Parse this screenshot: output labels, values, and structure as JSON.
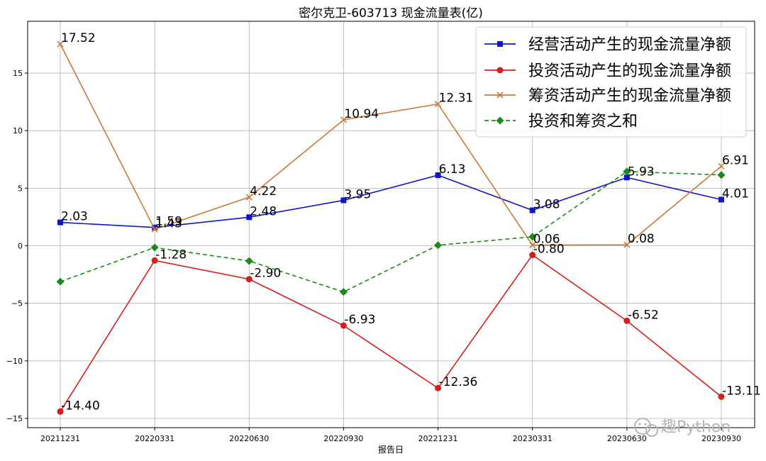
{
  "chart_data": {
    "type": "line",
    "title": "密尔克卫-603713 现金流量表(亿)",
    "xlabel": "报告日",
    "ylabel": "",
    "categories": [
      "20211231",
      "20220331",
      "20220630",
      "20220930",
      "20221231",
      "20230331",
      "20230630",
      "20230930"
    ],
    "ylim": [
      -15.8,
      19.5
    ],
    "yticks": [
      -15,
      -10,
      -5,
      0,
      5,
      10,
      15
    ],
    "ytick_labels": [
      "−15",
      "−10",
      "−5",
      "0",
      "5",
      "10",
      "15"
    ],
    "grid": true,
    "legend_position": "top-right",
    "series": [
      {
        "name": "经营活动产生的现金流量净额",
        "values": [
          2.03,
          1.59,
          2.48,
          3.95,
          6.13,
          3.08,
          5.93,
          4.01
        ],
        "labels": [
          "2.03",
          "1.59",
          "2.48",
          "3.95",
          "6.13",
          "3.08",
          "5.93",
          "4.01"
        ],
        "color": "#1515c8",
        "marker": "square",
        "dash": "solid"
      },
      {
        "name": "投资活动产生的现金流量净额",
        "values": [
          -14.4,
          -1.28,
          -2.9,
          -6.93,
          -12.36,
          -0.8,
          -6.52,
          -13.11
        ],
        "labels": [
          "-14.40",
          "-1.28",
          "-2.90",
          "-6.93",
          "-12.36",
          "-0.80",
          "-6.52",
          "-13.11"
        ],
        "color": "#d41f1f",
        "marker": "circle",
        "dash": "solid"
      },
      {
        "name": "筹资活动产生的现金流量净额",
        "values": [
          17.52,
          1.43,
          4.22,
          10.94,
          12.31,
          0.06,
          0.08,
          6.91
        ],
        "labels": [
          "17.52",
          "1.43",
          "4.22",
          "10.94",
          "12.31",
          "0.06",
          "0.08",
          "6.91"
        ],
        "color": "#c87a3a",
        "marker": "x",
        "dash": "solid"
      },
      {
        "name": "投资和筹资之和",
        "values": [
          -3.12,
          -0.15,
          -1.32,
          -4.01,
          0.05,
          0.78,
          6.45,
          6.15
        ],
        "labels": [],
        "color": "#1a8a1a",
        "marker": "diamond",
        "dash": "dashed"
      }
    ]
  },
  "watermark": {
    "text": "趣Python",
    "icon": "wechat-icon"
  }
}
